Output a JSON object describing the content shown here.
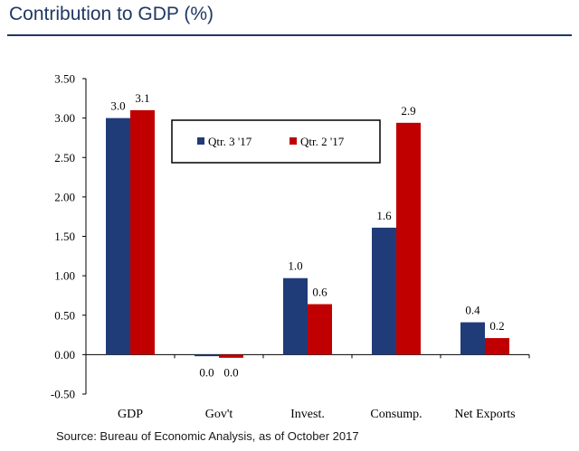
{
  "header": {
    "title": "Contribution to GDP (%)"
  },
  "footer": {
    "source": "Source: Bureau of Economic Analysis, as of October 2017"
  },
  "colors": {
    "q3": "#1f3c78",
    "q2": "#c00000",
    "title": "#1f3864"
  },
  "chart_data": {
    "type": "bar",
    "title": "Contribution to GDP (%)",
    "categories": [
      "GDP",
      "Gov't",
      "Invest.",
      "Consump.",
      "Net Exports"
    ],
    "series": [
      {
        "name": "Qtr. 3 '17",
        "values": [
          3.0,
          -0.02,
          0.97,
          1.61,
          0.41
        ],
        "labels": [
          "3.0",
          "0.0",
          "1.0",
          "1.6",
          "0.4"
        ],
        "color": "#1f3c78"
      },
      {
        "name": "Qtr. 2 '17",
        "values": [
          3.1,
          -0.04,
          0.64,
          2.94,
          0.21
        ],
        "labels": [
          "3.1",
          "0.0",
          "0.6",
          "2.9",
          "0.2"
        ],
        "color": "#c00000"
      }
    ],
    "yticks": [
      "3.50",
      "3.00",
      "2.50",
      "2.00",
      "1.50",
      "1.00",
      "0.50",
      "0.00",
      "-0.50"
    ],
    "ylim": [
      -0.5,
      3.5
    ],
    "xlabel": "",
    "ylabel": "",
    "legend": "top-center, boxed",
    "grid": false
  }
}
